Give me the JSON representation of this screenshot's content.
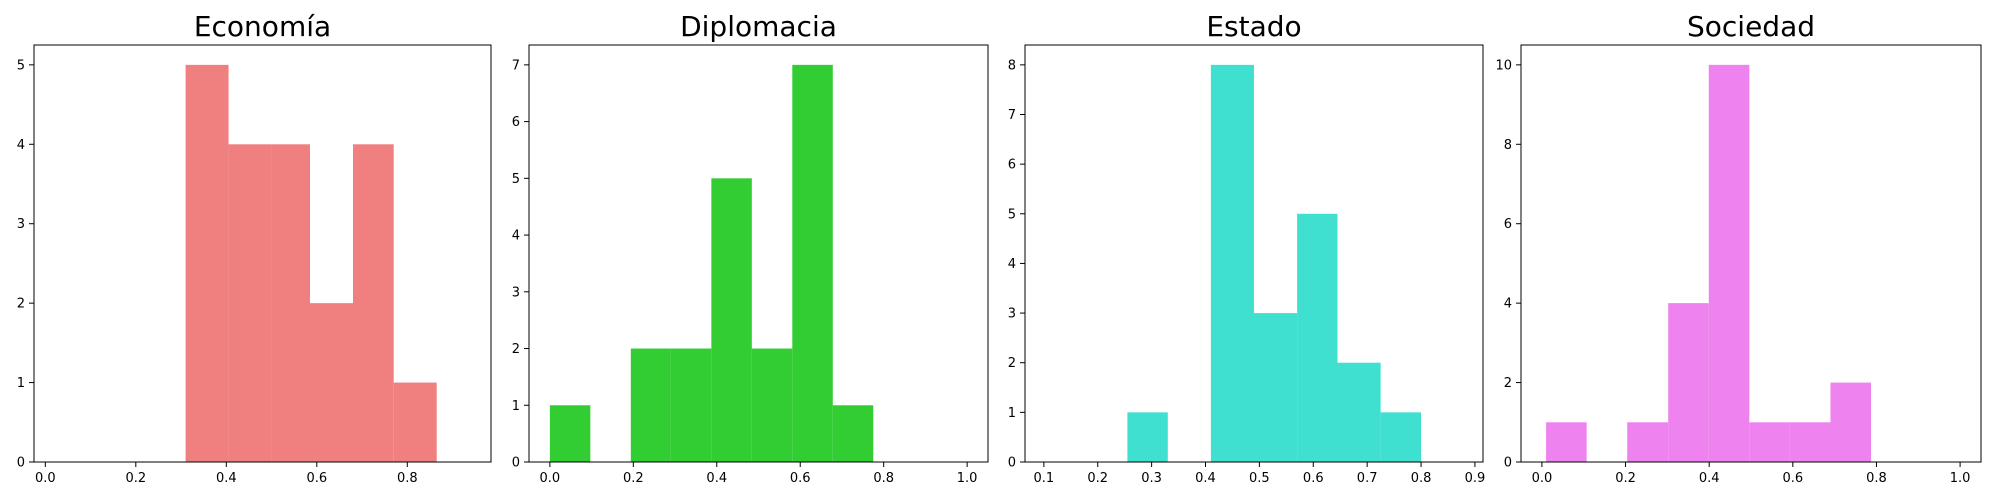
{
  "chart_data": [
    {
      "type": "bar",
      "title": "Economía",
      "color": "#f08080",
      "xlim": [
        -0.025,
        0.985
      ],
      "ylim": [
        0,
        5.25
      ],
      "xticks": [
        "0.0",
        "0.2",
        "0.4",
        "0.6",
        "0.8"
      ],
      "xtick_values": [
        0.0,
        0.2,
        0.4,
        0.6,
        0.8
      ],
      "yticks": [
        "0",
        "1",
        "2",
        "3",
        "4",
        "5"
      ],
      "ytick_values": [
        0,
        1,
        2,
        3,
        4,
        5
      ],
      "bins": [
        [
          0.31,
          0.405,
          5
        ],
        [
          0.405,
          0.5,
          4
        ],
        [
          0.5,
          0.585,
          4
        ],
        [
          0.585,
          0.68,
          2
        ],
        [
          0.68,
          0.77,
          4
        ],
        [
          0.77,
          0.865,
          1
        ]
      ]
    },
    {
      "type": "bar",
      "title": "Diplomacia",
      "color": "#32cd32",
      "xlim": [
        -0.05,
        1.05
      ],
      "ylim": [
        0,
        7.35
      ],
      "xticks": [
        "0.0",
        "0.2",
        "0.4",
        "0.6",
        "0.8",
        "1.0"
      ],
      "xtick_values": [
        0.0,
        0.2,
        0.4,
        0.6,
        0.8,
        1.0
      ],
      "yticks": [
        "0",
        "1",
        "2",
        "3",
        "4",
        "5",
        "6",
        "7"
      ],
      "ytick_values": [
        0,
        1,
        2,
        3,
        4,
        5,
        6,
        7
      ],
      "bins": [
        [
          0.0,
          0.097,
          1
        ],
        [
          0.194,
          0.29,
          2
        ],
        [
          0.29,
          0.387,
          2
        ],
        [
          0.387,
          0.484,
          5
        ],
        [
          0.484,
          0.581,
          2
        ],
        [
          0.581,
          0.678,
          7
        ],
        [
          0.678,
          0.775,
          1
        ]
      ]
    },
    {
      "type": "bar",
      "title": "Estado",
      "color": "#40e0d0",
      "xlim": [
        0.065,
        0.915
      ],
      "ylim": [
        0,
        8.4
      ],
      "xticks": [
        "0.1",
        "0.2",
        "0.3",
        "0.4",
        "0.5",
        "0.6",
        "0.7",
        "0.8",
        "0.9"
      ],
      "xtick_values": [
        0.1,
        0.2,
        0.3,
        0.4,
        0.5,
        0.6,
        0.7,
        0.8,
        0.9
      ],
      "yticks": [
        "0",
        "1",
        "2",
        "3",
        "4",
        "5",
        "6",
        "7",
        "8"
      ],
      "ytick_values": [
        0,
        1,
        2,
        3,
        4,
        5,
        6,
        7,
        8
      ],
      "bins": [
        [
          0.255,
          0.33,
          1
        ],
        [
          0.41,
          0.49,
          8
        ],
        [
          0.49,
          0.57,
          3
        ],
        [
          0.57,
          0.645,
          5
        ],
        [
          0.645,
          0.725,
          2
        ],
        [
          0.725,
          0.8,
          1
        ]
      ]
    },
    {
      "type": "bar",
      "title": "Sociedad",
      "color": "#ee82ee",
      "xlim": [
        -0.05,
        1.05
      ],
      "ylim": [
        0,
        10.5
      ],
      "xticks": [
        "0.0",
        "0.2",
        "0.4",
        "0.6",
        "0.8",
        "1.0"
      ],
      "xtick_values": [
        0.0,
        0.2,
        0.4,
        0.6,
        0.8,
        1.0
      ],
      "yticks": [
        "0",
        "2",
        "4",
        "6",
        "8",
        "10"
      ],
      "ytick_values": [
        0,
        2,
        4,
        6,
        8,
        10
      ],
      "bins": [
        [
          0.01,
          0.107,
          1
        ],
        [
          0.204,
          0.302,
          1
        ],
        [
          0.302,
          0.399,
          4
        ],
        [
          0.399,
          0.496,
          10
        ],
        [
          0.496,
          0.593,
          1
        ],
        [
          0.593,
          0.69,
          1
        ],
        [
          0.69,
          0.787,
          2
        ]
      ]
    }
  ]
}
